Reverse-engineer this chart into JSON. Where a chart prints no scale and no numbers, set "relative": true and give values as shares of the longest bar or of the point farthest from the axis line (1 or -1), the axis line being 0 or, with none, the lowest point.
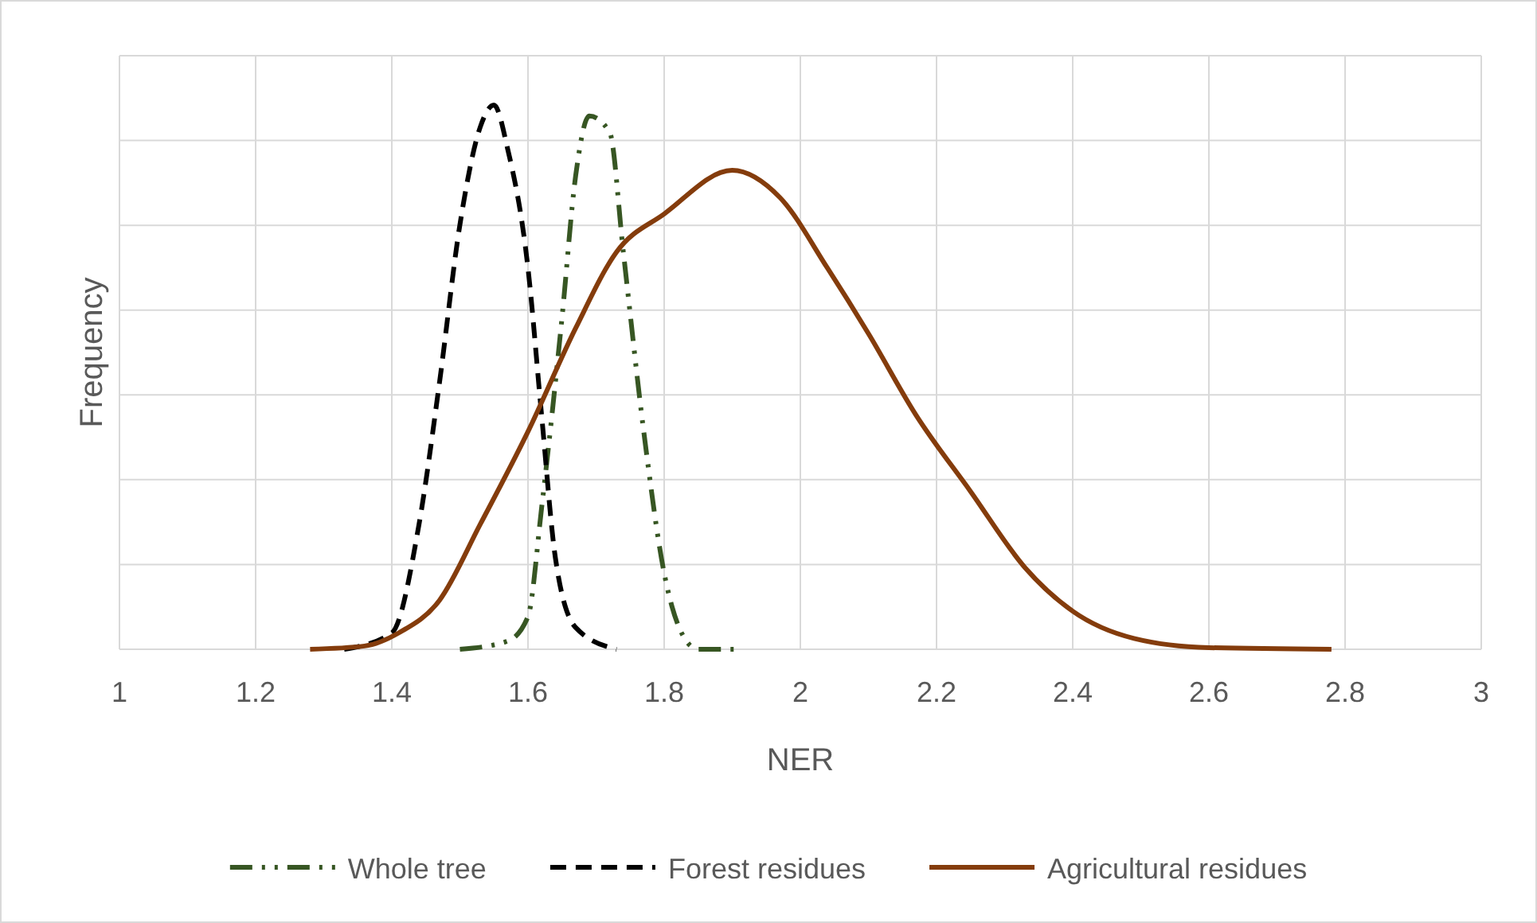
{
  "chart_data": {
    "type": "line",
    "relative": true,
    "xlabel": "NER",
    "ylabel": "Frequency",
    "xlim": [
      1,
      3
    ],
    "xticks": [
      1,
      1.2,
      1.4,
      1.6,
      1.8,
      2,
      2.2,
      2.4,
      2.6,
      2.8,
      3
    ],
    "grid": true,
    "legend": "bottom",
    "series": [
      {
        "name": "Whole tree",
        "color": "#375623",
        "line_style": "dashdot",
        "x": [
          1.5,
          1.57,
          1.6,
          1.62,
          1.65,
          1.67,
          1.69,
          1.72,
          1.74,
          1.77,
          1.8,
          1.83,
          1.85,
          1.91
        ],
        "values": [
          0,
          0.015,
          0.06,
          0.26,
          0.61,
          0.87,
          0.98,
          0.95,
          0.73,
          0.4,
          0.14,
          0.02,
          0,
          0
        ]
      },
      {
        "name": "Forest residues",
        "color": "#000000",
        "line_style": "dashed",
        "x": [
          1.33,
          1.4,
          1.44,
          1.47,
          1.5,
          1.53,
          1.55,
          1.57,
          1.6,
          1.62,
          1.64,
          1.67,
          1.73
        ],
        "values": [
          0,
          0.03,
          0.23,
          0.49,
          0.78,
          0.96,
          1,
          0.92,
          0.7,
          0.43,
          0.17,
          0.04,
          0
        ]
      },
      {
        "name": "Agricultural residues",
        "color": "#843c0c",
        "line_style": "solid",
        "x": [
          1.28,
          1.36,
          1.41,
          1.47,
          1.53,
          1.6,
          1.67,
          1.73,
          1.8,
          1.9,
          1.97,
          2.04,
          2.1,
          2.17,
          2.25,
          2.33,
          2.4,
          2.49,
          2.6,
          2.78
        ],
        "values": [
          0,
          0.006,
          0.03,
          0.09,
          0.23,
          0.4,
          0.59,
          0.73,
          0.8,
          0.88,
          0.83,
          0.7,
          0.58,
          0.43,
          0.29,
          0.15,
          0.07,
          0.02,
          0.003,
          0
        ]
      }
    ]
  }
}
